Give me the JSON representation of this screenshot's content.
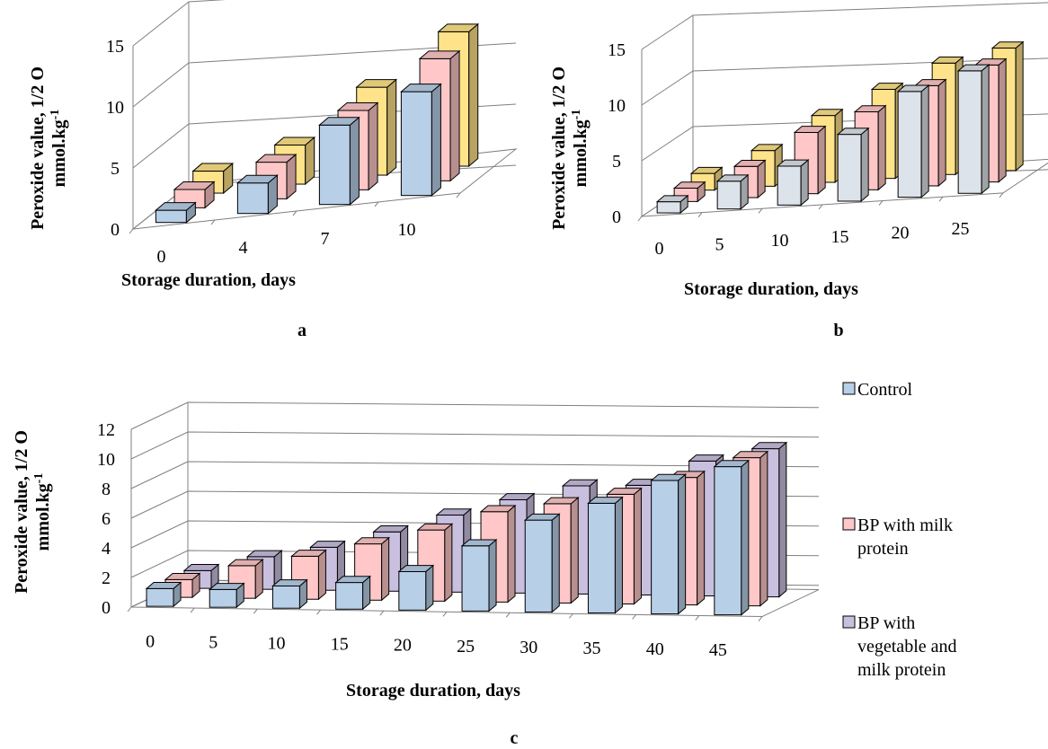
{
  "colors": {
    "control": "#b8cfe8",
    "milk": "#ffc7c7",
    "vegmilk": "#c9bfdf",
    "yellow": "#ffe38a",
    "lightgray": "#dde3ea",
    "darkblue": "#a6c2e0",
    "outline": "#000000"
  },
  "legend": {
    "items": [
      {
        "label": "Control",
        "color": "#b8cfe8"
      },
      {
        "label": "BP with milk protein",
        "color": "#ffc7c7"
      },
      {
        "label": "BP with vegetable and milk protein",
        "color": "#c9bfdf"
      }
    ]
  },
  "chart_data": [
    {
      "id": "a",
      "panel_label": "a",
      "type": "bar",
      "xlabel": "Storage duration, days",
      "ylabel_line1": "Peroxide value,  1/2 O",
      "ylabel_line2": "mmol.kg",
      "ylabel_sup": "-1",
      "ylim": [
        0,
        15
      ],
      "yticks": [
        0,
        5,
        10,
        15
      ],
      "categories": [
        "0",
        "4",
        "7",
        "10"
      ],
      "series": [
        {
          "values": [
            1.0,
            2.5,
            6.5,
            8.5
          ],
          "color": "#b8cfe8"
        },
        {
          "values": [
            1.5,
            3.0,
            6.5,
            10.0
          ],
          "color": "#ffc7c7"
        },
        {
          "values": [
            1.8,
            3.2,
            7.2,
            11.0
          ],
          "color": "#ffe38a"
        }
      ]
    },
    {
      "id": "b",
      "panel_label": "b",
      "type": "bar",
      "xlabel": "Storage duration, days",
      "ylabel_line1": "Peroxide value,  1/2 O",
      "ylabel_line2": "mmol.kg",
      "ylabel_sup": "-1",
      "ylim": [
        0,
        15
      ],
      "yticks": [
        0,
        5,
        10,
        15
      ],
      "categories": [
        "0",
        "5",
        "10",
        "15",
        "20",
        "25"
      ],
      "series": [
        {
          "values": [
            1.0,
            2.5,
            3.5,
            6.0,
            9.5,
            11.0
          ],
          "color": "#dde3ea"
        },
        {
          "values": [
            1.2,
            2.8,
            5.5,
            7.0,
            9.0,
            10.5
          ],
          "color": "#ffc7c7"
        },
        {
          "values": [
            1.5,
            3.2,
            6.0,
            8.0,
            10.0,
            11.0
          ],
          "color": "#ffe38a"
        }
      ]
    },
    {
      "id": "c",
      "panel_label": "c",
      "type": "bar",
      "xlabel": "Storage duration, days",
      "ylabel_line1": "Peroxide value,  1/2 O",
      "ylabel_line2": "mmol.kg",
      "ylabel_sup": "-1",
      "ylim": [
        0,
        12
      ],
      "yticks": [
        0,
        2,
        4,
        6,
        8,
        10,
        12
      ],
      "categories": [
        "0",
        "5",
        "10",
        "15",
        "20",
        "25",
        "30",
        "35",
        "40",
        "45"
      ],
      "series": [
        {
          "name": "Control",
          "values": [
            1.2,
            1.2,
            1.5,
            1.8,
            2.6,
            4.4,
            6.2,
            7.4,
            9.0,
            10.0
          ],
          "color": "#b8cfe8"
        },
        {
          "name": "BP with milk protein",
          "values": [
            1.2,
            2.2,
            2.9,
            3.8,
            4.8,
            6.1,
            6.7,
            7.4,
            8.6,
            10.0
          ],
          "color": "#ffc7c7"
        },
        {
          "name": "BP with vegetable and milk protein",
          "values": [
            1.2,
            2.2,
            2.9,
            4.0,
            5.2,
            6.3,
            7.3,
            7.4,
            9.1,
            10.0
          ],
          "color": "#c9bfdf"
        }
      ]
    }
  ]
}
